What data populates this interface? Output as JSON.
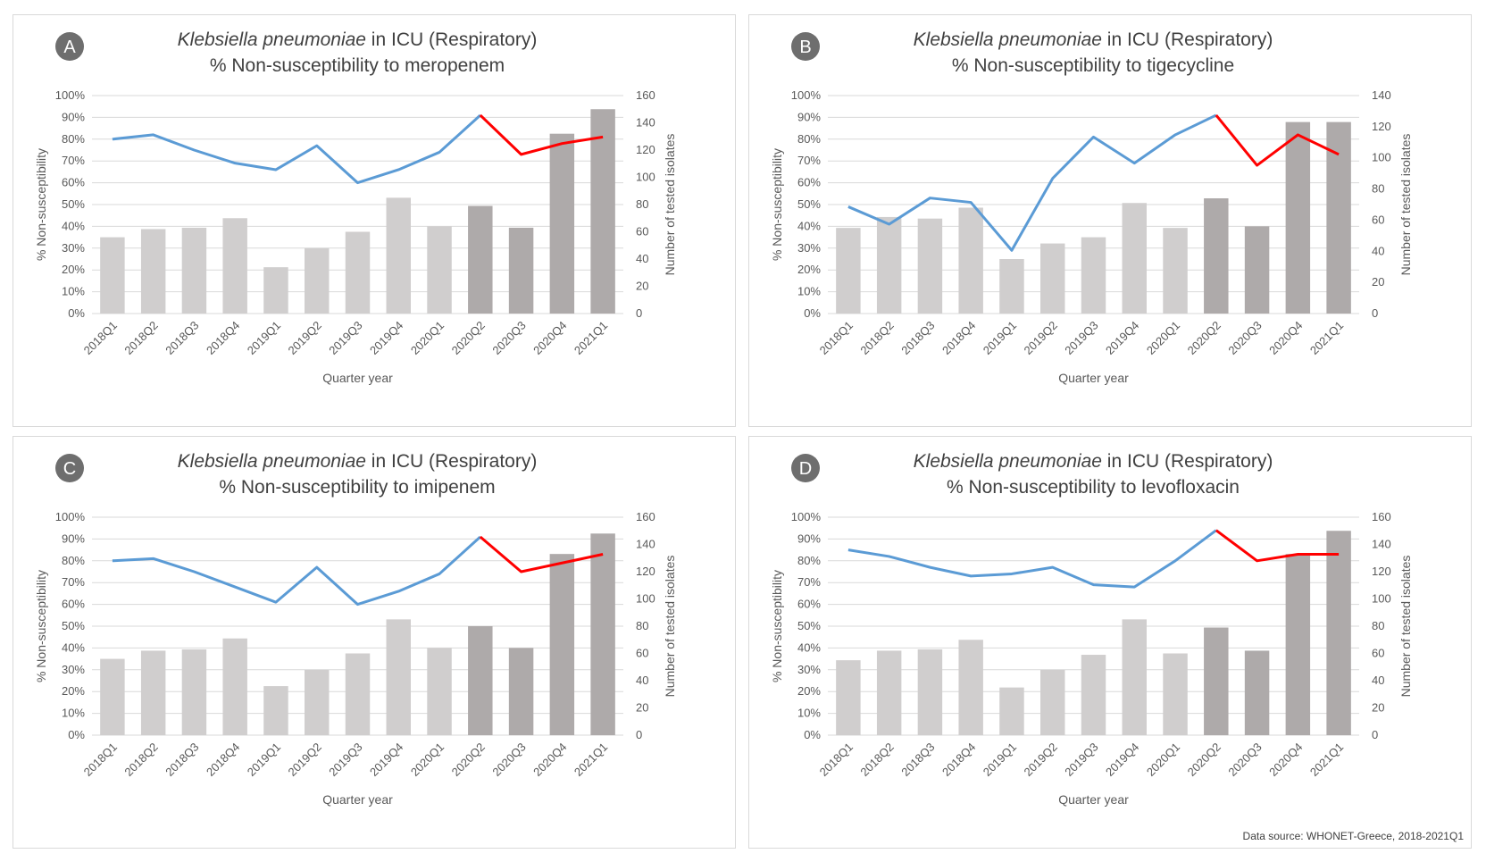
{
  "figure": {
    "source_note": "Data source: WHONET-Greece, 2018-2021Q1",
    "colors": {
      "bar_light": "#d0cece",
      "bar_dark": "#aeaaaa",
      "line_blue": "#5b9bd5",
      "line_red": "#ff0000",
      "grid": "#d9d9d9",
      "badge": "#6e6e6e"
    }
  },
  "chart_data": [
    {
      "type": "bar+line",
      "badge": "A",
      "title_italic": "Klebsiella pneumoniae",
      "title_rest": " in ICU (Respiratory)",
      "subtitle": "% Non-susceptibility to meropenem",
      "xlabel": "Quarter year",
      "ylabel_left": "% Non-susceptibility",
      "ylabel_right": "Number of tested isolates",
      "ylim_left": [
        0,
        100
      ],
      "ylim_right": [
        0,
        160
      ],
      "left_ticks": [
        "0%",
        "10%",
        "20%",
        "30%",
        "40%",
        "50%",
        "60%",
        "70%",
        "80%",
        "90%",
        "100%"
      ],
      "right_ticks": [
        "0",
        "20",
        "40",
        "60",
        "80",
        "100",
        "120",
        "140",
        "160"
      ],
      "categories": [
        "2018Q1",
        "2018Q2",
        "2018Q3",
        "2018Q4",
        "2019Q1",
        "2019Q2",
        "2019Q3",
        "2019Q4",
        "2020Q1",
        "2020Q2",
        "2020Q3",
        "2020Q4",
        "2021Q1"
      ],
      "bars": [
        56,
        62,
        63,
        70,
        34,
        48,
        60,
        85,
        64,
        79,
        63,
        132,
        150
      ],
      "bar_dark_from": 9,
      "line": [
        80,
        82,
        75,
        69,
        66,
        77,
        60,
        66,
        74,
        91,
        73,
        78,
        81
      ],
      "line_red_from": 9
    },
    {
      "type": "bar+line",
      "badge": "B",
      "title_italic": "Klebsiella pneumoniae",
      "title_rest": " in ICU (Respiratory)",
      "subtitle": "% Non-susceptibility to tigecycline",
      "xlabel": "Quarter year",
      "ylabel_left": "% Non-susceptibility",
      "ylabel_right": "Number of tested isolates",
      "ylim_left": [
        0,
        100
      ],
      "ylim_right": [
        0,
        140
      ],
      "left_ticks": [
        "0%",
        "10%",
        "20%",
        "30%",
        "40%",
        "50%",
        "60%",
        "70%",
        "80%",
        "90%",
        "100%"
      ],
      "right_ticks": [
        "0",
        "20",
        "40",
        "60",
        "80",
        "100",
        "120",
        "140"
      ],
      "categories": [
        "2018Q1",
        "2018Q2",
        "2018Q3",
        "2018Q4",
        "2019Q1",
        "2019Q2",
        "2019Q3",
        "2019Q4",
        "2020Q1",
        "2020Q2",
        "2020Q3",
        "2020Q4",
        "2021Q1"
      ],
      "bars": [
        55,
        62,
        61,
        68,
        35,
        45,
        49,
        71,
        55,
        74,
        56,
        123,
        123
      ],
      "bar_dark_from": 9,
      "line": [
        49,
        41,
        53,
        51,
        29,
        62,
        81,
        69,
        82,
        91,
        68,
        82,
        73
      ],
      "line_red_from": 9
    },
    {
      "type": "bar+line",
      "badge": "C",
      "title_italic": "Klebsiella pneumoniae",
      "title_rest": " in ICU (Respiratory)",
      "subtitle": "% Non-susceptibility to imipenem",
      "xlabel": "Quarter year",
      "ylabel_left": "% Non-susceptibility",
      "ylabel_right": "Number of tested isolates",
      "ylim_left": [
        0,
        100
      ],
      "ylim_right": [
        0,
        160
      ],
      "left_ticks": [
        "0%",
        "10%",
        "20%",
        "30%",
        "40%",
        "50%",
        "60%",
        "70%",
        "80%",
        "90%",
        "100%"
      ],
      "right_ticks": [
        "0",
        "20",
        "40",
        "60",
        "80",
        "100",
        "120",
        "140",
        "160"
      ],
      "categories": [
        "2018Q1",
        "2018Q2",
        "2018Q3",
        "2018Q4",
        "2019Q1",
        "2019Q2",
        "2019Q3",
        "2019Q4",
        "2020Q1",
        "2020Q2",
        "2020Q3",
        "2020Q4",
        "2021Q1"
      ],
      "bars": [
        56,
        62,
        63,
        71,
        36,
        48,
        60,
        85,
        64,
        80,
        64,
        133,
        148
      ],
      "bar_dark_from": 9,
      "line": [
        80,
        81,
        75,
        68,
        61,
        77,
        60,
        66,
        74,
        91,
        75,
        79,
        83
      ],
      "line_red_from": 9
    },
    {
      "type": "bar+line",
      "badge": "D",
      "title_italic": "Klebsiella pneumoniae",
      "title_rest": " in ICU (Respiratory)",
      "subtitle": "% Non-susceptibility to levofloxacin",
      "xlabel": "Quarter year",
      "ylabel_left": "% Non-susceptibility",
      "ylabel_right": "Number of tested isolates",
      "ylim_left": [
        0,
        100
      ],
      "ylim_right": [
        0,
        160
      ],
      "left_ticks": [
        "0%",
        "10%",
        "20%",
        "30%",
        "40%",
        "50%",
        "60%",
        "70%",
        "80%",
        "90%",
        "100%"
      ],
      "right_ticks": [
        "0",
        "20",
        "40",
        "60",
        "80",
        "100",
        "120",
        "140",
        "160"
      ],
      "categories": [
        "2018Q1",
        "2018Q2",
        "2018Q3",
        "2018Q4",
        "2019Q1",
        "2019Q2",
        "2019Q3",
        "2019Q4",
        "2020Q1",
        "2020Q2",
        "2020Q3",
        "2020Q4",
        "2021Q1"
      ],
      "bars": [
        55,
        62,
        63,
        70,
        35,
        48,
        59,
        85,
        60,
        79,
        62,
        133,
        150
      ],
      "bar_dark_from": 9,
      "line": [
        85,
        82,
        77,
        73,
        74,
        77,
        69,
        68,
        80,
        94,
        80,
        83,
        83
      ],
      "line_red_from": 9
    }
  ]
}
